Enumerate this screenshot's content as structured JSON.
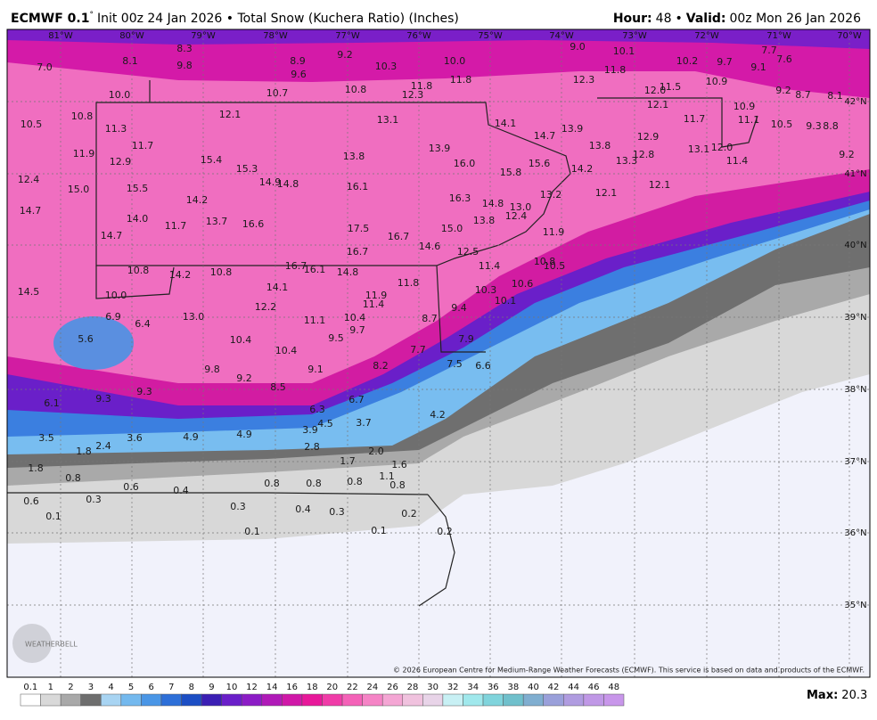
{
  "header": {
    "model": "ECMWF 0.1",
    "degree": "°",
    "description": "Init 00z 24 Jan 2026 • Total Snow (Kuchera Ratio) (Inches)",
    "hour_label": "Hour:",
    "hour": 48,
    "separator": "•",
    "valid_label": "Valid:",
    "valid": "00z Mon 26 Jan 2026"
  },
  "map": {
    "longitude_labels": [
      "81°W",
      "80°W",
      "79°W",
      "78°W",
      "77°W",
      "76°W",
      "75°W",
      "74°W",
      "73°W",
      "72°W",
      "71°W",
      "70°W"
    ],
    "latitude_labels": [
      "42°N",
      "41°N",
      "40°N",
      "39°N",
      "38°N",
      "37°N",
      "36°N",
      "35°N"
    ],
    "snow_totals": [
      "8.3",
      "9.0",
      "10.1",
      "7.7",
      "7.6",
      "7.0",
      "8.1",
      "9.8",
      "8.9",
      "9.2",
      "9.6",
      "10.3",
      "10.0",
      "11.8",
      "10.2",
      "9.7",
      "9.1",
      "10.9",
      "11.8",
      "11.8",
      "12.3",
      "12.3",
      "10.7",
      "10.8",
      "10.0",
      "12.0",
      "11.5",
      "9.2",
      "8.7",
      "8.1",
      "10.5",
      "10.8",
      "12.1",
      "13.1",
      "14.1",
      "14.7",
      "13.9",
      "12.1",
      "10.9",
      "11.7",
      "11.1",
      "10.5",
      "9.3",
      "8.8",
      "11.3",
      "11.7",
      "13.8",
      "12.9",
      "13.1",
      "12.0",
      "11.9",
      "12.9",
      "15.4",
      "15.3",
      "13.8",
      "13.9",
      "16.0",
      "15.6",
      "13.3",
      "12.8",
      "11.4",
      "9.2",
      "12.4",
      "14.9",
      "14.8",
      "16.1",
      "15.8",
      "14.2",
      "15.0",
      "15.5",
      "14.2",
      "13.2",
      "12.1",
      "12.1",
      "16.3",
      "14.8",
      "13.0",
      "12.4",
      "14.7",
      "14.0",
      "13.7",
      "16.6",
      "11.7",
      "13.8",
      "17.5",
      "15.0",
      "16.7",
      "11.9",
      "14.7",
      "16.7",
      "14.6",
      "12.5",
      "16.7",
      "16.1",
      "14.8",
      "10.8",
      "14.2",
      "10.8",
      "11.4",
      "10.8",
      "10.5",
      "11.8",
      "14.1",
      "14.5",
      "10.0",
      "10.3",
      "10.6",
      "11.9",
      "11.4",
      "12.2",
      "10.1",
      "9.4",
      "6.9",
      "6.4",
      "13.0",
      "11.1",
      "10.4",
      "9.7",
      "8.7",
      "5.6",
      "10.4",
      "9.5",
      "7.9",
      "10.4",
      "7.7",
      "9.8",
      "9.1",
      "8.2",
      "7.5",
      "6.6",
      "9.2",
      "8.5",
      "9.3",
      "9.3",
      "6.1",
      "6.7",
      "6.3",
      "4.2",
      "4.5",
      "3.7",
      "3.9",
      "3.5",
      "3.6",
      "4.9",
      "4.9",
      "2.4",
      "1.8",
      "2.8",
      "2.0",
      "1.7",
      "1.6",
      "1.8",
      "1.1",
      "0.8",
      "0.6",
      "0.8",
      "0.8",
      "0.8",
      "0.8",
      "0.4",
      "0.6",
      "0.3",
      "0.3",
      "0.4",
      "0.3",
      "0.2",
      "0.1",
      "0.1",
      "0.1",
      "0.2"
    ],
    "logo": "WEATHERBELL",
    "credit": "© 2026 European Centre for Medium-Range Weather Forecasts (ECMWF). This service is based on data and products of the ECMWF."
  },
  "legend": {
    "ticks": [
      0.1,
      1,
      2,
      3,
      4,
      5,
      6,
      7,
      8,
      9,
      10,
      12,
      14,
      16,
      18,
      20,
      22,
      24,
      26,
      28,
      30,
      32,
      34,
      36,
      38,
      40,
      42,
      44,
      46,
      48
    ]
  },
  "footer": {
    "max_label": "Max:",
    "max": 20.3
  }
}
